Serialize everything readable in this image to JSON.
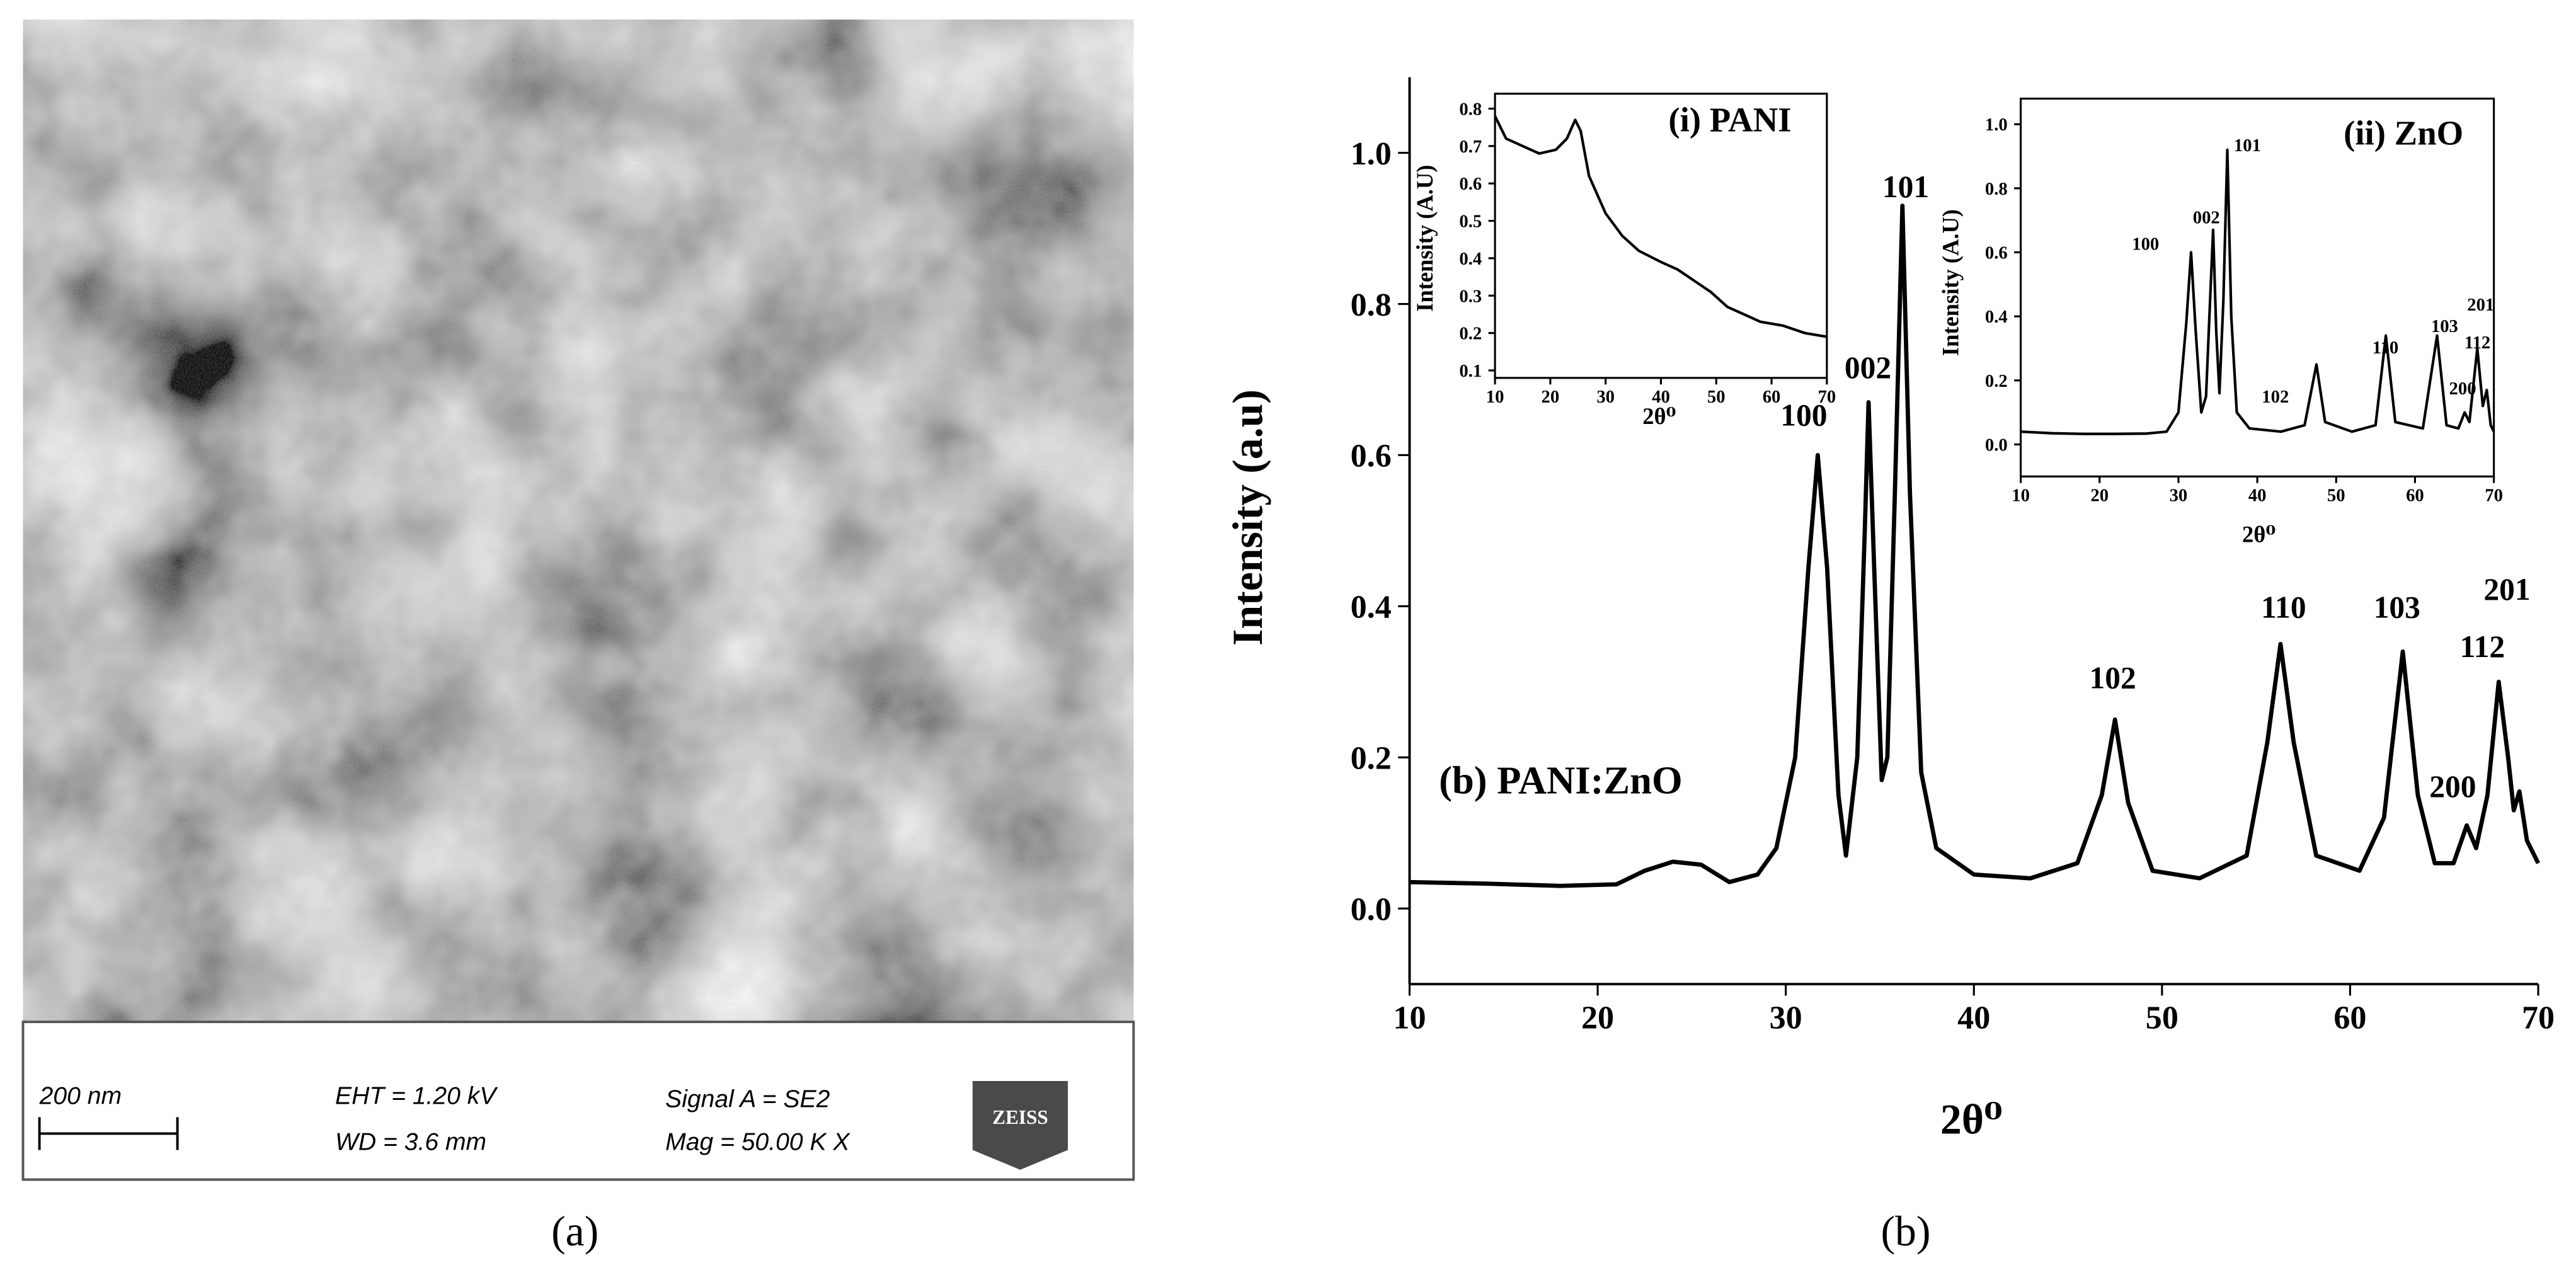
{
  "sem_panel": {
    "scale_bar": "200 nm",
    "eht": "EHT =  1.20 kV",
    "wd": "WD =  3.6 mm",
    "signal": "Signal A = SE2",
    "mag": "Mag =    50.00 K X",
    "logo": "ZEISS"
  },
  "captions": [
    "(a)",
    "(b)"
  ],
  "chart_data": [
    {
      "type": "line",
      "x_label": "2θ⁰",
      "y_label": "Intensity (a.u)",
      "series_label": "(b) PANI:ZnO",
      "color": "#000000",
      "x": [
        10,
        14,
        18,
        21,
        22.5,
        24,
        25.5,
        27,
        28.5,
        29.5,
        30.5,
        31.2,
        31.7,
        32.2,
        32.8,
        33.2,
        33.8,
        34.2,
        34.4,
        34.7,
        35.1,
        35.4,
        35.8,
        36.2,
        36.6,
        37.2,
        38,
        40,
        43,
        45.5,
        46.8,
        47.5,
        48.2,
        49.5,
        52,
        54.5,
        55.6,
        56.3,
        57,
        58.2,
        60.5,
        61.8,
        62.8,
        63.6,
        64.5,
        65.5,
        66.2,
        66.7,
        67.3,
        67.9,
        68.4,
        68.7,
        69,
        69.4,
        70
      ],
      "values": [
        0.035,
        0.033,
        0.03,
        0.032,
        0.05,
        0.062,
        0.058,
        0.035,
        0.045,
        0.08,
        0.2,
        0.45,
        0.6,
        0.45,
        0.15,
        0.07,
        0.2,
        0.5,
        0.67,
        0.45,
        0.17,
        0.2,
        0.55,
        0.93,
        0.55,
        0.18,
        0.08,
        0.045,
        0.04,
        0.06,
        0.15,
        0.25,
        0.14,
        0.05,
        0.04,
        0.07,
        0.22,
        0.35,
        0.22,
        0.07,
        0.05,
        0.12,
        0.34,
        0.15,
        0.06,
        0.06,
        0.11,
        0.08,
        0.15,
        0.3,
        0.2,
        0.13,
        0.155,
        0.09,
        0.06
      ],
      "xlim": [
        10,
        70
      ],
      "ylim": [
        -0.1,
        1.1
      ],
      "xticks": [
        10,
        20,
        30,
        40,
        50,
        60,
        70
      ],
      "yticks": [
        {
          "value": 0,
          "label": "0.0"
        },
        0.2,
        0.4,
        0.6,
        0.8,
        {
          "value": 1,
          "label": "1.0"
        }
      ],
      "annotations": [
        "100",
        "002",
        "101",
        "102",
        "110",
        "103",
        "200",
        "112",
        "201"
      ]
    },
    {
      "type": "line",
      "title": "(i) PANI",
      "x_label": "2θ⁰",
      "y_label": "Intensity (A.U)",
      "color": "#000000",
      "x": [
        10,
        12,
        15,
        18,
        21,
        23,
        24.5,
        25.5,
        27,
        30,
        33,
        36,
        40,
        43,
        46,
        49,
        52,
        55,
        58,
        62,
        66,
        70
      ],
      "values": [
        0.78,
        0.72,
        0.7,
        0.68,
        0.69,
        0.72,
        0.77,
        0.74,
        0.62,
        0.52,
        0.46,
        0.42,
        0.39,
        0.37,
        0.34,
        0.31,
        0.27,
        0.25,
        0.23,
        0.22,
        0.2,
        0.19
      ],
      "xlim": [
        10,
        70
      ],
      "ylim": [
        0.08,
        0.84
      ],
      "xticks": [
        10,
        20,
        30,
        40,
        50,
        60,
        70
      ],
      "yticks": [
        0.1,
        0.2,
        0.3,
        0.4,
        0.5,
        0.6,
        0.7,
        0.8
      ]
    },
    {
      "type": "line",
      "title": "(ii) ZnO",
      "x_label": "2θ⁰",
      "y_label": "Intensity (A.U)",
      "color": "#000000",
      "x": [
        10,
        14,
        18,
        22,
        26,
        28.5,
        30,
        31,
        31.6,
        32.2,
        32.9,
        33.5,
        34.1,
        34.4,
        34.8,
        35.2,
        35.7,
        36.2,
        36.7,
        37.4,
        39,
        43,
        46,
        47.5,
        48.6,
        52,
        55,
        56.3,
        57.5,
        61,
        62.8,
        64,
        65.5,
        66.3,
        66.9,
        67.9,
        68.6,
        69.1,
        69.6,
        70
      ],
      "values": [
        0.04,
        0.035,
        0.033,
        0.033,
        0.034,
        0.04,
        0.1,
        0.38,
        0.6,
        0.35,
        0.1,
        0.15,
        0.5,
        0.67,
        0.35,
        0.16,
        0.45,
        0.92,
        0.4,
        0.1,
        0.05,
        0.04,
        0.06,
        0.25,
        0.07,
        0.04,
        0.06,
        0.34,
        0.07,
        0.05,
        0.34,
        0.06,
        0.05,
        0.1,
        0.07,
        0.3,
        0.12,
        0.17,
        0.06,
        0.04
      ],
      "xlim": [
        10,
        70
      ],
      "ylim": [
        -0.1,
        1.08
      ],
      "xticks": [
        10,
        20,
        30,
        40,
        50,
        60,
        70
      ],
      "yticks": [
        {
          "value": 0,
          "label": "0.0"
        },
        0.2,
        0.4,
        0.6,
        0.8,
        {
          "value": 1,
          "label": "1.0"
        }
      ],
      "annotations": [
        "100",
        "002",
        "101",
        "102",
        "110",
        "103",
        "200",
        "112",
        "201"
      ]
    }
  ]
}
